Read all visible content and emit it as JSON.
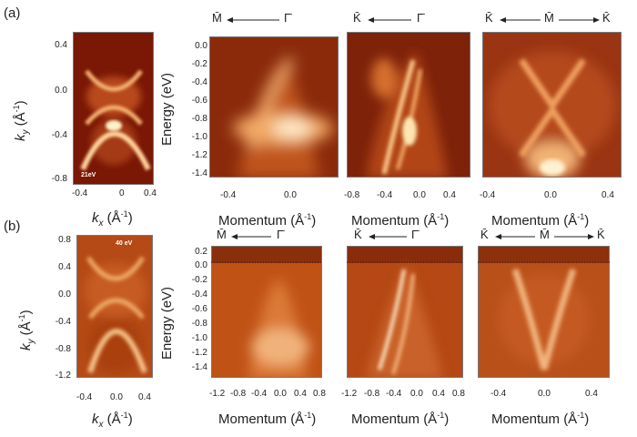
{
  "panel_labels": {
    "a": "(a)",
    "b": "(b)"
  },
  "row_a": {
    "fermi": {
      "ylabel_k": "k",
      "ylabel_sub": "y",
      "ylabel_unit": " (Å",
      "xlabel_k": "k",
      "xlabel_sub": "x",
      "xlabel_unit": " (Å",
      "photon": "21eV",
      "yticks": [
        "0.4",
        "0.0",
        "-0.4",
        "-0.8"
      ],
      "xticks": [
        "-0.4",
        "0",
        "0.4"
      ]
    },
    "energy_label": "Energy (eV)",
    "energy_ticks": [
      "0.0",
      "-0.2",
      "-0.4",
      "-0.6",
      "-0.8",
      "-1.0",
      "-1.2",
      "-1.4"
    ],
    "cuts": [
      {
        "dir_left": "M̄",
        "dir_right": "Γ̄",
        "xticks": [
          "-0.4",
          "0.0"
        ],
        "xlabel": "Momentum (Å"
      },
      {
        "dir_left": "K̄",
        "dir_right": "Γ̄",
        "xticks": [
          "-0.8",
          "-0.4",
          "0.0",
          "0.4"
        ],
        "xlabel": "Momentum (Å"
      },
      {
        "dir_left": "K̄",
        "dir_mid": "M̄",
        "dir_right": "K̄",
        "xticks": [
          "-0.4",
          "0.0",
          "0.4"
        ],
        "xlabel": "Momentum (Å"
      }
    ]
  },
  "row_b": {
    "fermi": {
      "ylabel_k": "k",
      "ylabel_sub": "y",
      "ylabel_unit": " (Å",
      "xlabel_k": "k",
      "xlabel_sub": "x",
      "xlabel_unit": " (Å",
      "photon": "40 eV",
      "yticks": [
        "0.8",
        "0.4",
        "0.0",
        "-0.4",
        "-0.8",
        "-1.2"
      ],
      "xticks": [
        "-0.4",
        "0.0",
        "0.4"
      ]
    },
    "energy_label": "Energy (eV)",
    "energy_ticks": [
      "0.2",
      "0.0",
      "-0.2",
      "-0.4",
      "-0.6",
      "-0.8",
      "-1.0",
      "-1.2",
      "-1.4"
    ],
    "cuts": [
      {
        "dir_left": "M̄",
        "dir_right": "Γ̄",
        "xticks": [
          "-1.2",
          "-0.8",
          "-0.4",
          "0.0",
          "0.4",
          "0.8"
        ],
        "xlabel": "Momentum (Å"
      },
      {
        "dir_left": "K̄",
        "dir_right": "Γ̄",
        "xticks": [
          "-1.2",
          "-0.8",
          "-0.4",
          "0.0",
          "0.4",
          "0.8"
        ],
        "xlabel": "Momentum (Å"
      },
      {
        "dir_left": "K̄",
        "dir_mid": "M̄",
        "dir_right": "K̄",
        "xticks": [
          "-0.4",
          "0.0",
          "0.4"
        ],
        "xlabel": "Momentum (Å"
      }
    ]
  },
  "inverse_exp": "-1",
  "close_paren": ")",
  "colors": {
    "low": "#6b0f00",
    "mid": "#d3531a",
    "high": "#ffe9b8"
  }
}
